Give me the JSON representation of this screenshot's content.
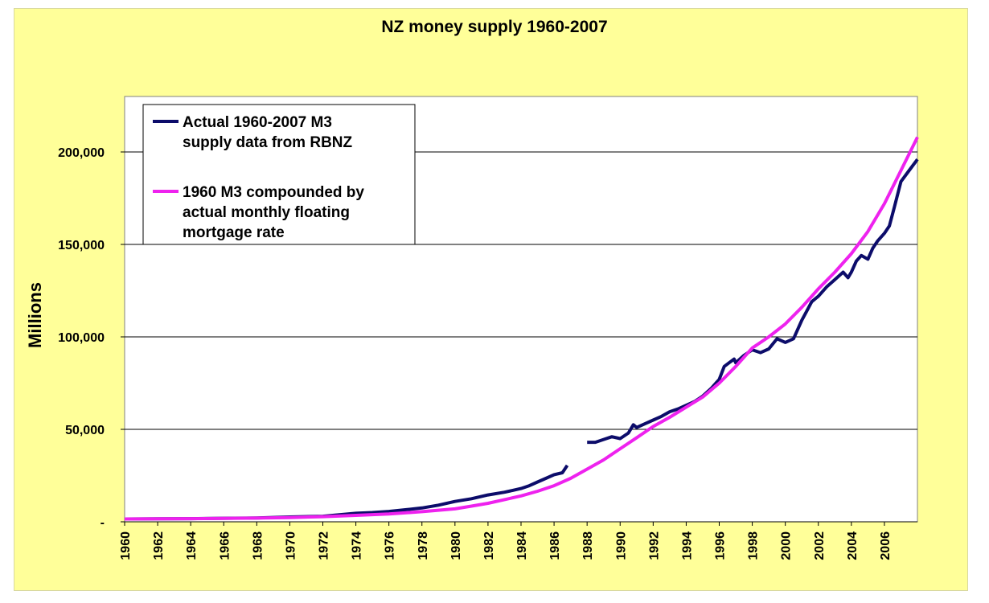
{
  "chart_data": {
    "type": "line",
    "title": "NZ money supply 1960-2007",
    "ylabel": "Millions",
    "xlabel": "",
    "xlim": [
      1960,
      2008
    ],
    "ylim": [
      0,
      230000
    ],
    "grid": "horizontal",
    "legend_position": "top-left",
    "y_ticks": [
      {
        "value": 0,
        "label": "-"
      },
      {
        "value": 50000,
        "label": "50,000"
      },
      {
        "value": 100000,
        "label": "100,000"
      },
      {
        "value": 150000,
        "label": "150,000"
      },
      {
        "value": 200000,
        "label": "200,000"
      }
    ],
    "x_ticks": [
      "1960",
      "1962",
      "1964",
      "1966",
      "1968",
      "1970",
      "1972",
      "1974",
      "1976",
      "1978",
      "1980",
      "1982",
      "1984",
      "1986",
      "1988",
      "1990",
      "1992",
      "1994",
      "1996",
      "1998",
      "2000",
      "2002",
      "2004",
      "2006"
    ],
    "series": [
      {
        "name": "Actual 1960-2007 M3 supply data from RBNZ",
        "legend_lines": [
          "Actual 1960-2007 M3",
          "supply data from RBNZ"
        ],
        "color": "#0c0c6a",
        "segments": [
          [
            [
              1960,
              1500
            ],
            [
              1962,
              1600
            ],
            [
              1964,
              1700
            ],
            [
              1966,
              1900
            ],
            [
              1968,
              2100
            ],
            [
              1970,
              2600
            ],
            [
              1972,
              3000
            ],
            [
              1973,
              3800
            ],
            [
              1974,
              4600
            ],
            [
              1975,
              5000
            ],
            [
              1976,
              5600
            ],
            [
              1977,
              6500
            ],
            [
              1978,
              7500
            ],
            [
              1979,
              9000
            ],
            [
              1980,
              11000
            ],
            [
              1981,
              12500
            ],
            [
              1982,
              14500
            ],
            [
              1983,
              16000
            ],
            [
              1983.5,
              17000
            ],
            [
              1984,
              18000
            ],
            [
              1984.5,
              19500
            ],
            [
              1985,
              21500
            ],
            [
              1985.5,
              23500
            ],
            [
              1986,
              25500
            ],
            [
              1986.5,
              26500
            ],
            [
              1986.8,
              30500
            ]
          ],
          [
            [
              1988,
              43000
            ],
            [
              1988.5,
              43000
            ],
            [
              1989,
              44500
            ],
            [
              1989.5,
              46000
            ],
            [
              1990,
              45000
            ],
            [
              1990.5,
              48000
            ],
            [
              1990.8,
              52500
            ],
            [
              1991,
              51000
            ],
            [
              1991.5,
              53000
            ],
            [
              1992,
              55000
            ],
            [
              1992.5,
              57000
            ],
            [
              1993,
              59500
            ],
            [
              1993.5,
              61000
            ],
            [
              1994,
              63000
            ],
            [
              1994.5,
              65000
            ],
            [
              1995,
              68000
            ],
            [
              1995.5,
              72000
            ],
            [
              1996,
              77000
            ],
            [
              1996.3,
              84000
            ],
            [
              1996.6,
              86000
            ],
            [
              1996.9,
              88000
            ],
            [
              1997,
              86000
            ],
            [
              1997.5,
              90000
            ],
            [
              1998,
              93000
            ],
            [
              1998.5,
              91500
            ],
            [
              1999,
              93500
            ],
            [
              1999.5,
              99000
            ],
            [
              2000,
              97000
            ],
            [
              2000.5,
              99000
            ],
            [
              2001,
              109000
            ],
            [
              2001.3,
              114000
            ],
            [
              2001.6,
              119000
            ],
            [
              2002,
              122000
            ],
            [
              2002.5,
              127000
            ],
            [
              2003,
              131000
            ],
            [
              2003.5,
              135000
            ],
            [
              2003.8,
              132000
            ],
            [
              2004,
              135000
            ],
            [
              2004.3,
              141000
            ],
            [
              2004.6,
              144000
            ],
            [
              2005,
              142000
            ],
            [
              2005.3,
              148000
            ],
            [
              2005.6,
              152000
            ],
            [
              2006,
              156000
            ],
            [
              2006.3,
              160000
            ],
            [
              2006.6,
              170000
            ],
            [
              2007,
              184000
            ],
            [
              2007.5,
              190000
            ],
            [
              2008,
              196000
            ]
          ]
        ]
      },
      {
        "name": "1960 M3 compounded by actual monthly floating mortgage rate",
        "legend_lines": [
          "1960 M3 compounded by",
          "actual monthly floating",
          "mortgage rate"
        ],
        "color": "#ee22ee",
        "segments": [
          [
            [
              1960,
              1500
            ],
            [
              1964,
              1700
            ],
            [
              1968,
              2000
            ],
            [
              1970,
              2300
            ],
            [
              1972,
              2800
            ],
            [
              1974,
              3500
            ],
            [
              1976,
              4200
            ],
            [
              1978,
              5500
            ],
            [
              1980,
              7000
            ],
            [
              1981,
              8500
            ],
            [
              1982,
              10000
            ],
            [
              1983,
              12000
            ],
            [
              1984,
              14000
            ],
            [
              1985,
              16500
            ],
            [
              1986,
              19500
            ],
            [
              1987,
              23500
            ],
            [
              1988,
              28500
            ],
            [
              1989,
              33500
            ],
            [
              1990,
              39500
            ],
            [
              1991,
              45500
            ],
            [
              1992,
              51500
            ],
            [
              1993,
              56500
            ],
            [
              1994,
              62000
            ],
            [
              1995,
              67500
            ],
            [
              1996,
              75000
            ],
            [
              1997,
              84000
            ],
            [
              1998,
              94000
            ],
            [
              1999,
              100000
            ],
            [
              2000,
              107000
            ],
            [
              2001,
              116000
            ],
            [
              2002,
              126000
            ],
            [
              2003,
              135000
            ],
            [
              2004,
              145000
            ],
            [
              2005,
              157000
            ],
            [
              2006,
              172000
            ],
            [
              2007,
              190000
            ],
            [
              2008,
              208000
            ]
          ]
        ]
      }
    ]
  }
}
